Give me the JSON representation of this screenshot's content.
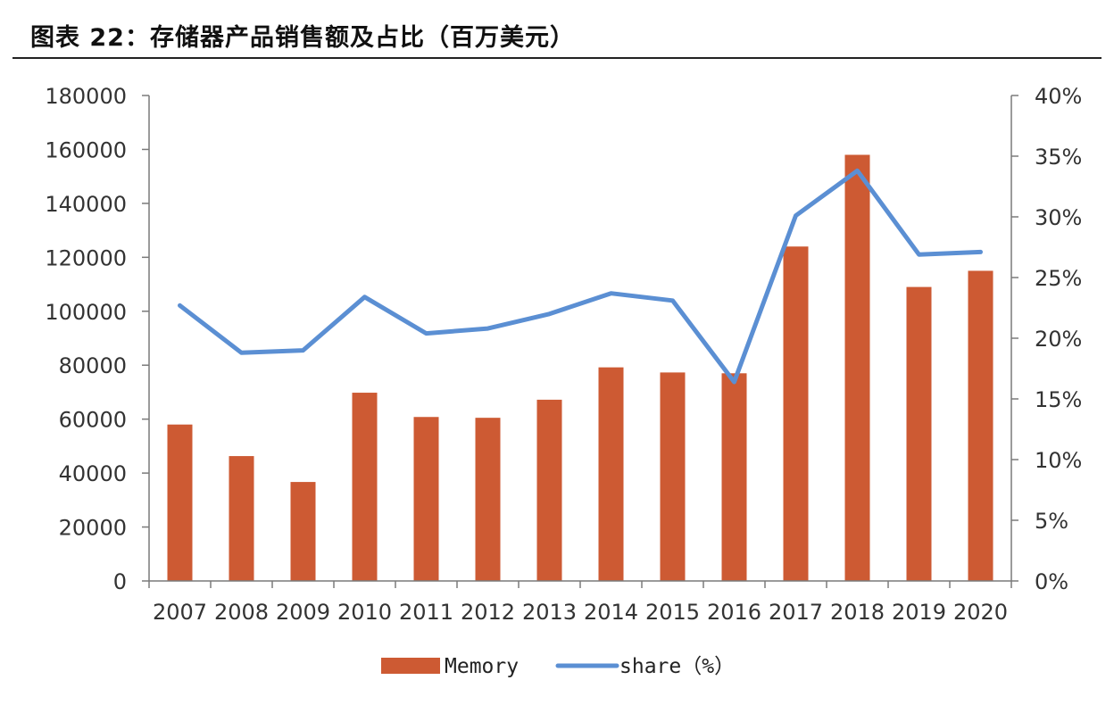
{
  "header": {
    "title": "图表 22：存储器产品销售额及占比（百万美元）"
  },
  "colors": {
    "bar": "#cd5a33",
    "line": "#5b8fd3",
    "axis": "#7a7a7a"
  },
  "chart_data": {
    "type": "bar",
    "title": "图表 22：存储器产品销售额及占比（百万美元）",
    "categories": [
      "2007",
      "2008",
      "2009",
      "2010",
      "2011",
      "2012",
      "2013",
      "2014",
      "2015",
      "2016",
      "2017",
      "2018",
      "2019",
      "2020"
    ],
    "series": [
      {
        "name": "Memory",
        "type": "bar",
        "axis": "left",
        "values": [
          58000,
          46300,
          36700,
          69800,
          60800,
          60500,
          67200,
          79200,
          77300,
          77000,
          124000,
          158000,
          109000,
          115000
        ]
      },
      {
        "name": "share（%）",
        "type": "line",
        "axis": "right",
        "values": [
          0.227,
          0.188,
          0.19,
          0.234,
          0.204,
          0.208,
          0.22,
          0.237,
          0.231,
          0.164,
          0.301,
          0.338,
          0.269,
          0.271
        ]
      }
    ],
    "y_left": {
      "ylim": [
        0,
        180000
      ],
      "ticks": [
        "0",
        "20000",
        "40000",
        "60000",
        "80000",
        "100000",
        "120000",
        "140000",
        "160000",
        "180000"
      ]
    },
    "y_right": {
      "ylim": [
        0,
        0.4
      ],
      "ticks": [
        "0%",
        "5%",
        "10%",
        "15%",
        "20%",
        "25%",
        "30%",
        "35%",
        "40%"
      ]
    },
    "grid": false,
    "legend": {
      "position": "bottom",
      "items": [
        "Memory",
        "share（%）"
      ]
    }
  }
}
